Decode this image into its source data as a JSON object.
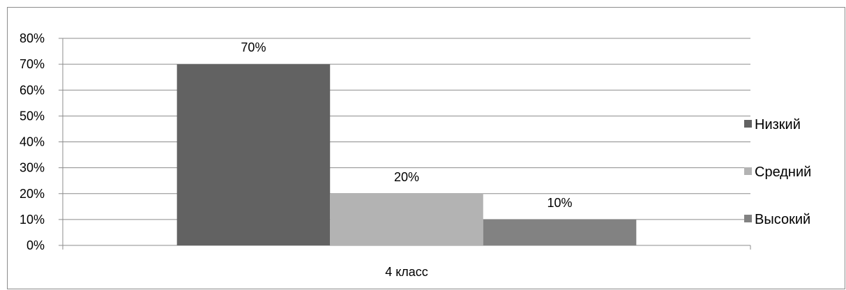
{
  "chart_data": {
    "type": "bar",
    "title": "",
    "xlabel": "",
    "ylabel": "",
    "categories": [
      "4 класс"
    ],
    "series": [
      {
        "name": "Низкий",
        "values": [
          70
        ],
        "color": "#626262",
        "label": "70%"
      },
      {
        "name": "Средний",
        "values": [
          20
        ],
        "color": "#b3b3b3",
        "label": "20%"
      },
      {
        "name": "Высокий",
        "values": [
          10
        ],
        "color": "#828282",
        "label": "10%"
      }
    ],
    "ylim": [
      0,
      80
    ],
    "yticks": [
      {
        "value": 0,
        "label": "0%"
      },
      {
        "value": 10,
        "label": "10%"
      },
      {
        "value": 20,
        "label": "20%"
      },
      {
        "value": 30,
        "label": "30%"
      },
      {
        "value": 40,
        "label": "40%"
      },
      {
        "value": 50,
        "label": "50%"
      },
      {
        "value": 60,
        "label": "60%"
      },
      {
        "value": 70,
        "label": "70%"
      },
      {
        "value": 80,
        "label": "80%"
      }
    ],
    "grid": true,
    "legend_position": "right",
    "colors": {
      "gridline": "#8c8c8c",
      "axis": "#8c8c8c"
    }
  }
}
